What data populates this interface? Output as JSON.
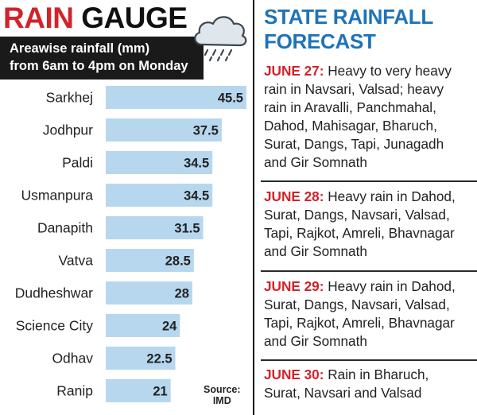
{
  "header": {
    "title_word1": "RAIN",
    "title_word2": "GAUGE",
    "subtitle_line1": "Areawise rainfall (mm)",
    "subtitle_line2": "from 6am to 4pm on Monday"
  },
  "colors": {
    "bar": "#b7d7ee",
    "accent_red": "#d2232a",
    "accent_blue": "#1f73b7",
    "dark": "#1a1a1a"
  },
  "icons": {
    "weather": "rain-cloud-icon"
  },
  "chart_data": {
    "type": "bar",
    "orientation": "horizontal",
    "title": "RAIN GAUGE",
    "subtitle": "Areawise rainfall (mm) from 6am to 4pm on Monday",
    "categories": [
      "Sarkhej",
      "Jodhpur",
      "Paldi",
      "Usmanpura",
      "Danapith",
      "Vatva",
      "Dudheshwar",
      "Science City",
      "Odhav",
      "Ranip"
    ],
    "values": [
      45.5,
      37.5,
      34.5,
      34.5,
      31.5,
      28.5,
      28,
      24,
      22.5,
      21
    ],
    "value_labels": [
      "45.5",
      "37.5",
      "34.5",
      "34.5",
      "31.5",
      "28.5",
      "28",
      "24",
      "22.5",
      "21"
    ],
    "xlim": [
      0,
      45.5
    ],
    "grid": false,
    "legend": "none"
  },
  "source": {
    "line1": "Source:",
    "line2": "IMD"
  },
  "forecast": {
    "title_line1": "STATE RAINFALL",
    "title_line2": "FORECAST",
    "items": [
      {
        "date": "JUNE 27:",
        "lines": [
          " Heavy to very heavy",
          "rain in Navsari, Valsad; heavy",
          "rain in Aravalli, Panchmahal,",
          "Dahod, Mahisagar, Bharuch,",
          "Surat, Dangs, Tapi, Junagadh",
          "and Gir Somnath"
        ]
      },
      {
        "date": "JUNE 28:",
        "lines": [
          " Heavy rain in Dahod,",
          "Surat, Dangs, Navsari, Valsad,",
          "Tapi, Rajkot, Amreli, Bhavnagar",
          "and Gir Somnath"
        ]
      },
      {
        "date": "JUNE 29:",
        "lines": [
          " Heavy rain in Dahod,",
          "Surat, Dangs, Navsari, Valsad,",
          "Tapi, Rajkot, Amreli, Bhavnagar",
          "and Gir Somnath"
        ]
      },
      {
        "date": "JUNE 30:",
        "lines": [
          " Rain in Bharuch,",
          "Surat, Navsari and Valsad"
        ]
      }
    ]
  }
}
